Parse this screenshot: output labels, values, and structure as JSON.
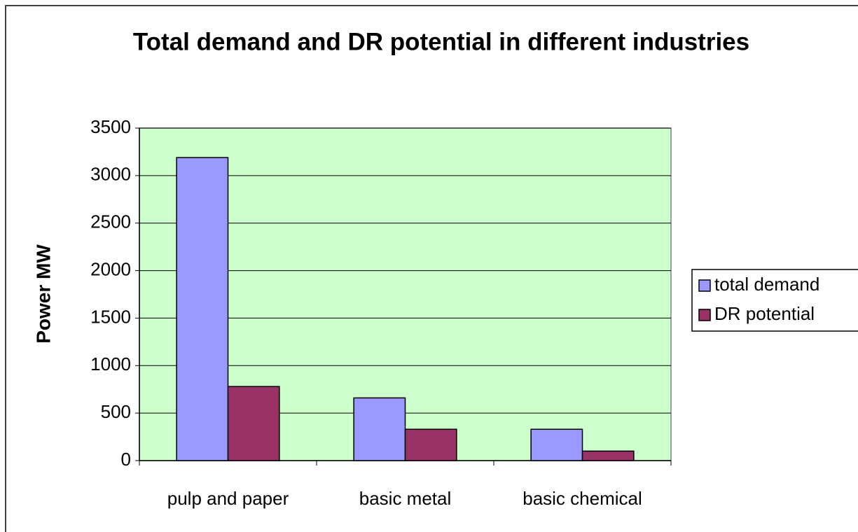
{
  "chart_data": {
    "type": "bar",
    "title": "Total demand and DR potential in different industries",
    "y_label": "Power MW",
    "categories": [
      "pulp and paper",
      "basic metal",
      "basic chemical"
    ],
    "series": [
      {
        "name": "total demand",
        "color": "#9999ff",
        "values": [
          3190,
          660,
          330
        ]
      },
      {
        "name": "DR potential",
        "color": "#993366",
        "values": [
          780,
          330,
          100
        ]
      }
    ],
    "ylim": [
      0,
      3500
    ],
    "yticks": [
      0,
      500,
      1000,
      1500,
      2000,
      2500,
      3000,
      3500
    ],
    "grid": true,
    "legend": "right",
    "plot_background": "#ccffcc"
  }
}
